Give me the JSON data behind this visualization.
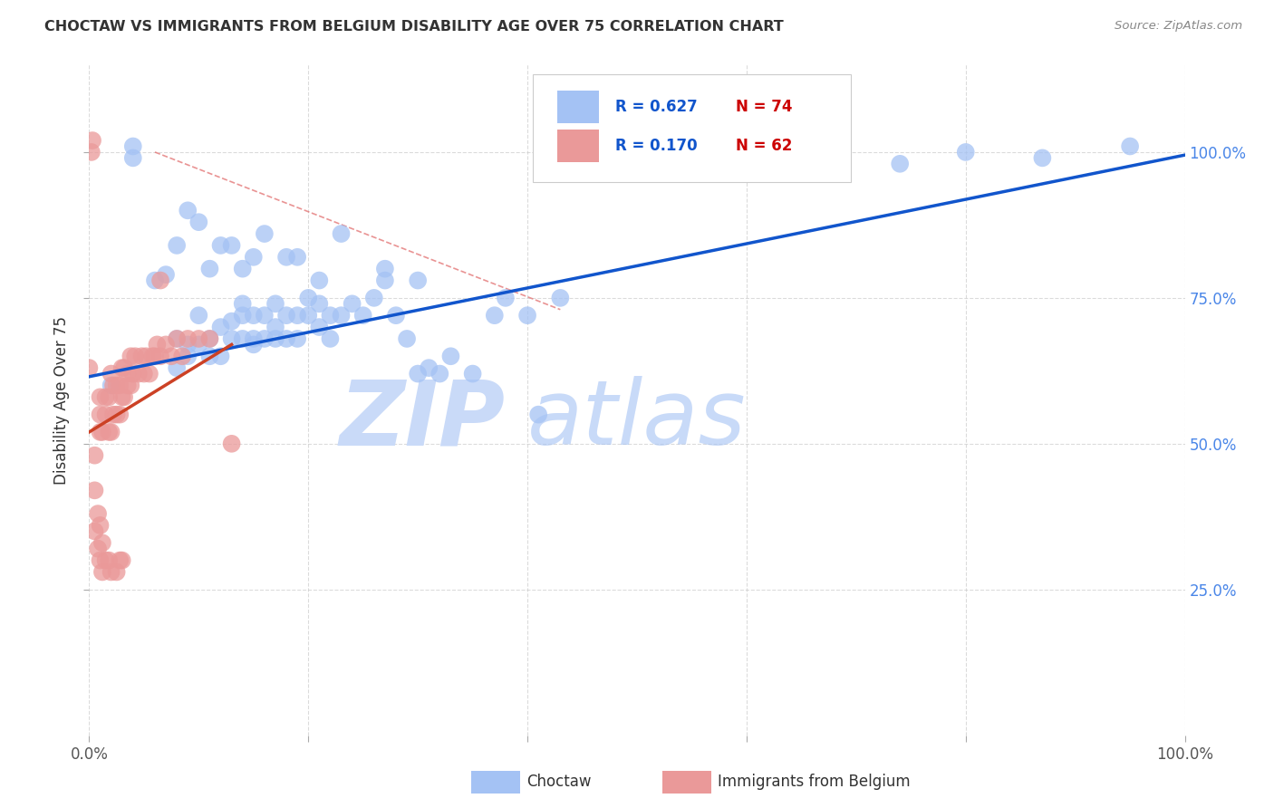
{
  "title": "CHOCTAW VS IMMIGRANTS FROM BELGIUM DISABILITY AGE OVER 75 CORRELATION CHART",
  "source": "Source: ZipAtlas.com",
  "ylabel": "Disability Age Over 75",
  "xlim": [
    0,
    1.0
  ],
  "ylim": [
    0,
    1.15
  ],
  "xtick_labels": [
    "0.0%",
    "",
    "",
    "",
    "",
    "100.0%"
  ],
  "xtick_vals": [
    0.0,
    0.2,
    0.4,
    0.6,
    0.8,
    1.0
  ],
  "ytick_labels": [
    "25.0%",
    "50.0%",
    "75.0%",
    "100.0%"
  ],
  "ytick_vals": [
    0.25,
    0.5,
    0.75,
    1.0
  ],
  "color_blue": "#a4c2f4",
  "color_pink": "#ea9999",
  "color_blue_line": "#1155cc",
  "color_pink_line": "#cc4125",
  "color_dashed_line": "#e06666",
  "background_color": "#ffffff",
  "grid_color": "#cccccc",
  "watermark_color": "#c9daf8",
  "blue_scatter_x": [
    0.02,
    0.04,
    0.04,
    0.06,
    0.07,
    0.08,
    0.08,
    0.09,
    0.09,
    0.1,
    0.1,
    0.11,
    0.11,
    0.12,
    0.12,
    0.13,
    0.13,
    0.14,
    0.14,
    0.14,
    0.15,
    0.15,
    0.15,
    0.16,
    0.16,
    0.17,
    0.17,
    0.17,
    0.18,
    0.18,
    0.19,
    0.19,
    0.2,
    0.2,
    0.21,
    0.21,
    0.22,
    0.22,
    0.23,
    0.24,
    0.25,
    0.26,
    0.27,
    0.28,
    0.29,
    0.3,
    0.31,
    0.32,
    0.33,
    0.35,
    0.37,
    0.38,
    0.4,
    0.41,
    0.43,
    0.27,
    0.3,
    0.18,
    0.14,
    0.12,
    0.1,
    0.09,
    0.08,
    0.13,
    0.16,
    0.23,
    0.19,
    0.21,
    0.15,
    0.11,
    0.74,
    0.8,
    0.95,
    0.87
  ],
  "blue_scatter_y": [
    0.6,
    0.99,
    1.01,
    0.78,
    0.79,
    0.68,
    0.63,
    0.67,
    0.65,
    0.67,
    0.72,
    0.65,
    0.68,
    0.65,
    0.7,
    0.68,
    0.71,
    0.68,
    0.72,
    0.74,
    0.67,
    0.72,
    0.68,
    0.72,
    0.68,
    0.7,
    0.74,
    0.68,
    0.72,
    0.68,
    0.72,
    0.68,
    0.72,
    0.75,
    0.74,
    0.7,
    0.72,
    0.68,
    0.72,
    0.74,
    0.72,
    0.75,
    0.78,
    0.72,
    0.68,
    0.62,
    0.63,
    0.62,
    0.65,
    0.62,
    0.72,
    0.75,
    0.72,
    0.55,
    0.75,
    0.8,
    0.78,
    0.82,
    0.8,
    0.84,
    0.88,
    0.9,
    0.84,
    0.84,
    0.86,
    0.86,
    0.82,
    0.78,
    0.82,
    0.8,
    0.98,
    1.0,
    1.01,
    0.99
  ],
  "pink_scatter_x": [
    0.0,
    0.005,
    0.01,
    0.01,
    0.01,
    0.012,
    0.015,
    0.015,
    0.018,
    0.018,
    0.02,
    0.02,
    0.022,
    0.022,
    0.025,
    0.025,
    0.028,
    0.028,
    0.03,
    0.03,
    0.032,
    0.032,
    0.035,
    0.035,
    0.038,
    0.038,
    0.04,
    0.042,
    0.045,
    0.048,
    0.05,
    0.052,
    0.055,
    0.058,
    0.06,
    0.062,
    0.065,
    0.07,
    0.075,
    0.08,
    0.085,
    0.09,
    0.1,
    0.11,
    0.005,
    0.008,
    0.01,
    0.012,
    0.005,
    0.008,
    0.01,
    0.012,
    0.015,
    0.018,
    0.02,
    0.025,
    0.028,
    0.03,
    0.002,
    0.003,
    0.065,
    0.13
  ],
  "pink_scatter_y": [
    0.63,
    0.48,
    0.52,
    0.55,
    0.58,
    0.52,
    0.55,
    0.58,
    0.52,
    0.58,
    0.52,
    0.62,
    0.55,
    0.6,
    0.55,
    0.6,
    0.55,
    0.6,
    0.58,
    0.63,
    0.58,
    0.63,
    0.6,
    0.62,
    0.6,
    0.65,
    0.62,
    0.65,
    0.62,
    0.65,
    0.62,
    0.65,
    0.62,
    0.65,
    0.65,
    0.67,
    0.65,
    0.67,
    0.65,
    0.68,
    0.65,
    0.68,
    0.68,
    0.68,
    0.42,
    0.38,
    0.36,
    0.33,
    0.35,
    0.32,
    0.3,
    0.28,
    0.3,
    0.3,
    0.28,
    0.28,
    0.3,
    0.3,
    1.0,
    1.02,
    0.78,
    0.5
  ],
  "blue_trendline_x": [
    0.0,
    1.0
  ],
  "blue_trendline_y": [
    0.615,
    0.995
  ],
  "pink_trendline_x": [
    0.0,
    0.13
  ],
  "pink_trendline_y": [
    0.52,
    0.67
  ],
  "dashed_line_x": [
    0.06,
    0.43
  ],
  "dashed_line_y": [
    1.0,
    0.73
  ]
}
